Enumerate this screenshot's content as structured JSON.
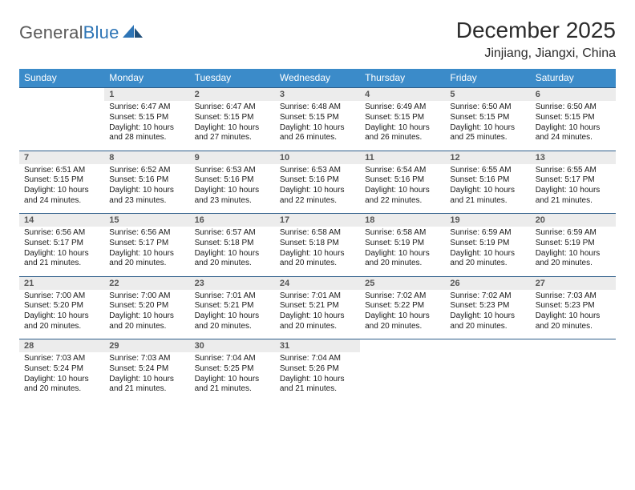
{
  "brand": {
    "name_gray": "General",
    "name_blue": "Blue"
  },
  "title": "December 2025",
  "location": "Jinjiang, Jiangxi, China",
  "colors": {
    "header_bg": "#3b8bc9",
    "daynum_bg": "#ececec",
    "rule": "#2e5e8a",
    "logo_blue": "#2e75b6",
    "logo_gray": "#5a5a5a"
  },
  "dow": [
    "Sunday",
    "Monday",
    "Tuesday",
    "Wednesday",
    "Thursday",
    "Friday",
    "Saturday"
  ],
  "weeks": [
    {
      "nums": [
        "",
        "1",
        "2",
        "3",
        "4",
        "5",
        "6"
      ],
      "cells": [
        null,
        {
          "sunrise": "6:47 AM",
          "sunset": "5:15 PM",
          "daylight": "10 hours and 28 minutes."
        },
        {
          "sunrise": "6:47 AM",
          "sunset": "5:15 PM",
          "daylight": "10 hours and 27 minutes."
        },
        {
          "sunrise": "6:48 AM",
          "sunset": "5:15 PM",
          "daylight": "10 hours and 26 minutes."
        },
        {
          "sunrise": "6:49 AM",
          "sunset": "5:15 PM",
          "daylight": "10 hours and 26 minutes."
        },
        {
          "sunrise": "6:50 AM",
          "sunset": "5:15 PM",
          "daylight": "10 hours and 25 minutes."
        },
        {
          "sunrise": "6:50 AM",
          "sunset": "5:15 PM",
          "daylight": "10 hours and 24 minutes."
        }
      ]
    },
    {
      "nums": [
        "7",
        "8",
        "9",
        "10",
        "11",
        "12",
        "13"
      ],
      "cells": [
        {
          "sunrise": "6:51 AM",
          "sunset": "5:15 PM",
          "daylight": "10 hours and 24 minutes."
        },
        {
          "sunrise": "6:52 AM",
          "sunset": "5:16 PM",
          "daylight": "10 hours and 23 minutes."
        },
        {
          "sunrise": "6:53 AM",
          "sunset": "5:16 PM",
          "daylight": "10 hours and 23 minutes."
        },
        {
          "sunrise": "6:53 AM",
          "sunset": "5:16 PM",
          "daylight": "10 hours and 22 minutes."
        },
        {
          "sunrise": "6:54 AM",
          "sunset": "5:16 PM",
          "daylight": "10 hours and 22 minutes."
        },
        {
          "sunrise": "6:55 AM",
          "sunset": "5:16 PM",
          "daylight": "10 hours and 21 minutes."
        },
        {
          "sunrise": "6:55 AM",
          "sunset": "5:17 PM",
          "daylight": "10 hours and 21 minutes."
        }
      ]
    },
    {
      "nums": [
        "14",
        "15",
        "16",
        "17",
        "18",
        "19",
        "20"
      ],
      "cells": [
        {
          "sunrise": "6:56 AM",
          "sunset": "5:17 PM",
          "daylight": "10 hours and 21 minutes."
        },
        {
          "sunrise": "6:56 AM",
          "sunset": "5:17 PM",
          "daylight": "10 hours and 20 minutes."
        },
        {
          "sunrise": "6:57 AM",
          "sunset": "5:18 PM",
          "daylight": "10 hours and 20 minutes."
        },
        {
          "sunrise": "6:58 AM",
          "sunset": "5:18 PM",
          "daylight": "10 hours and 20 minutes."
        },
        {
          "sunrise": "6:58 AM",
          "sunset": "5:19 PM",
          "daylight": "10 hours and 20 minutes."
        },
        {
          "sunrise": "6:59 AM",
          "sunset": "5:19 PM",
          "daylight": "10 hours and 20 minutes."
        },
        {
          "sunrise": "6:59 AM",
          "sunset": "5:19 PM",
          "daylight": "10 hours and 20 minutes."
        }
      ]
    },
    {
      "nums": [
        "21",
        "22",
        "23",
        "24",
        "25",
        "26",
        "27"
      ],
      "cells": [
        {
          "sunrise": "7:00 AM",
          "sunset": "5:20 PM",
          "daylight": "10 hours and 20 minutes."
        },
        {
          "sunrise": "7:00 AM",
          "sunset": "5:20 PM",
          "daylight": "10 hours and 20 minutes."
        },
        {
          "sunrise": "7:01 AM",
          "sunset": "5:21 PM",
          "daylight": "10 hours and 20 minutes."
        },
        {
          "sunrise": "7:01 AM",
          "sunset": "5:21 PM",
          "daylight": "10 hours and 20 minutes."
        },
        {
          "sunrise": "7:02 AM",
          "sunset": "5:22 PM",
          "daylight": "10 hours and 20 minutes."
        },
        {
          "sunrise": "7:02 AM",
          "sunset": "5:23 PM",
          "daylight": "10 hours and 20 minutes."
        },
        {
          "sunrise": "7:03 AM",
          "sunset": "5:23 PM",
          "daylight": "10 hours and 20 minutes."
        }
      ]
    },
    {
      "nums": [
        "28",
        "29",
        "30",
        "31",
        "",
        "",
        ""
      ],
      "cells": [
        {
          "sunrise": "7:03 AM",
          "sunset": "5:24 PM",
          "daylight": "10 hours and 20 minutes."
        },
        {
          "sunrise": "7:03 AM",
          "sunset": "5:24 PM",
          "daylight": "10 hours and 21 minutes."
        },
        {
          "sunrise": "7:04 AM",
          "sunset": "5:25 PM",
          "daylight": "10 hours and 21 minutes."
        },
        {
          "sunrise": "7:04 AM",
          "sunset": "5:26 PM",
          "daylight": "10 hours and 21 minutes."
        },
        null,
        null,
        null
      ]
    }
  ],
  "labels": {
    "sunrise_prefix": "Sunrise: ",
    "sunset_prefix": "Sunset: ",
    "daylight_prefix": "Daylight: "
  }
}
